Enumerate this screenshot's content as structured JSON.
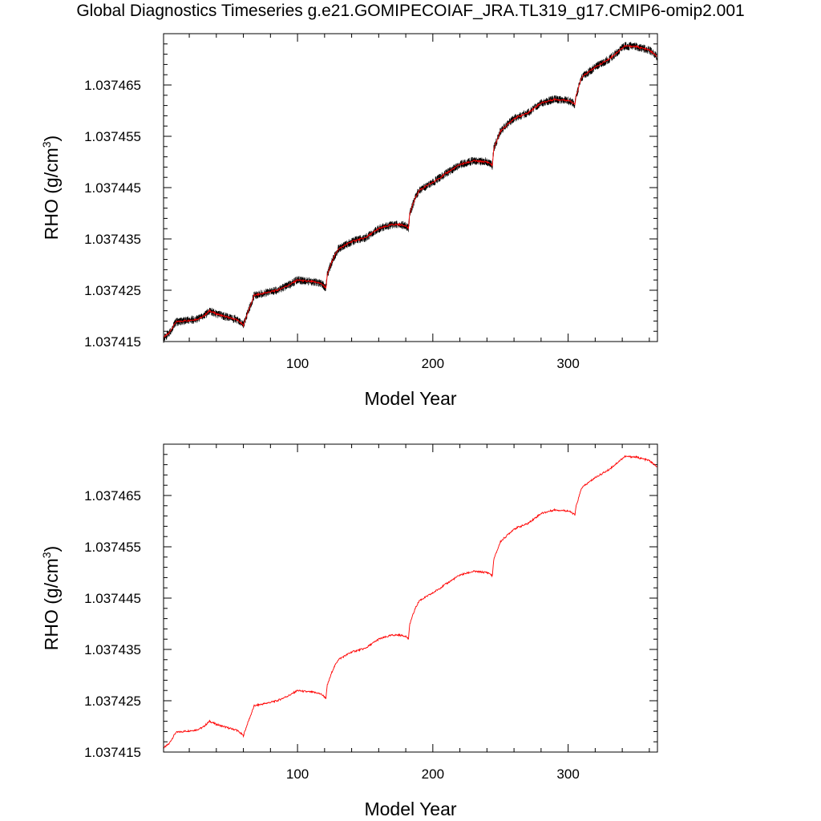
{
  "title": "Global Diagnostics Timeseries g.e21.GOMIPECOIAF_JRA.TL319_g17.CMIP6-omip2.001",
  "chart_data": [
    {
      "type": "line",
      "xlabel": "Model Year",
      "ylabel": "RHO (g/cm³)",
      "ylabel_base": "RHO (g/cm",
      "ylabel_sup": "3",
      "ylabel_end": ")",
      "xlim": [
        1,
        366
      ],
      "ylim": [
        1.037415,
        1.037475
      ],
      "xticks": [
        100,
        200,
        300
      ],
      "yticks": [
        1.037415,
        1.037425,
        1.037435,
        1.037445,
        1.037455,
        1.037465
      ],
      "ytick_labels": [
        "1.037415",
        "1.037425",
        "1.037435",
        "1.037445",
        "1.037455",
        "1.037465"
      ],
      "series": [
        {
          "role": "monthly",
          "color": "#000000",
          "x": [
            1,
            5,
            10,
            15,
            25,
            30,
            35,
            40,
            45,
            50,
            55,
            60,
            63,
            68,
            75,
            85,
            95,
            100,
            105,
            110,
            115,
            118,
            121,
            122,
            126,
            130,
            140,
            150,
            160,
            170,
            175,
            180,
            182,
            183,
            187,
            190,
            200,
            210,
            220,
            230,
            240,
            242,
            244,
            245,
            250,
            260,
            270,
            280,
            290,
            300,
            303,
            305,
            306,
            310,
            320,
            330,
            340,
            342,
            350,
            360,
            366
          ],
          "y": [
            1.0374155,
            1.0374166,
            1.0374188,
            1.037419,
            1.0374193,
            1.0374198,
            1.037421,
            1.0374204,
            1.03742,
            1.0374196,
            1.0374193,
            1.0374182,
            1.0374205,
            1.037424,
            1.0374244,
            1.037425,
            1.0374262,
            1.037427,
            1.0374268,
            1.0374267,
            1.0374265,
            1.0374262,
            1.0374255,
            1.037428,
            1.037431,
            1.037433,
            1.0374345,
            1.0374352,
            1.037437,
            1.0374378,
            1.0374378,
            1.0374376,
            1.037437,
            1.03744,
            1.037443,
            1.0374445,
            1.037446,
            1.0374478,
            1.0374495,
            1.0374502,
            1.03745,
            1.0374498,
            1.0374493,
            1.0374525,
            1.037456,
            1.0374585,
            1.0374595,
            1.0374615,
            1.0374622,
            1.037462,
            1.0374616,
            1.0374612,
            1.037463,
            1.0374665,
            1.0374685,
            1.03747,
            1.0374722,
            1.0374726,
            1.0374725,
            1.0374718,
            1.0374705
          ]
        },
        {
          "role": "annual",
          "color": "#ff0000",
          "x": [
            1,
            5,
            10,
            15,
            25,
            30,
            35,
            40,
            45,
            50,
            55,
            60,
            63,
            68,
            75,
            85,
            95,
            100,
            105,
            110,
            115,
            118,
            121,
            122,
            126,
            130,
            140,
            150,
            160,
            170,
            175,
            180,
            182,
            183,
            187,
            190,
            200,
            210,
            220,
            230,
            240,
            242,
            244,
            245,
            250,
            260,
            270,
            280,
            290,
            300,
            303,
            305,
            306,
            310,
            320,
            330,
            340,
            342,
            350,
            360,
            366
          ],
          "y": [
            1.0374158,
            1.0374166,
            1.0374188,
            1.037419,
            1.0374193,
            1.0374198,
            1.037421,
            1.0374204,
            1.03742,
            1.0374196,
            1.0374193,
            1.0374182,
            1.0374205,
            1.037424,
            1.0374244,
            1.037425,
            1.0374262,
            1.037427,
            1.0374268,
            1.0374267,
            1.0374265,
            1.0374262,
            1.0374255,
            1.037428,
            1.037431,
            1.037433,
            1.0374345,
            1.0374352,
            1.037437,
            1.0374378,
            1.0374378,
            1.0374376,
            1.037437,
            1.03744,
            1.037443,
            1.0374445,
            1.037446,
            1.0374478,
            1.0374495,
            1.0374502,
            1.03745,
            1.0374498,
            1.0374493,
            1.0374525,
            1.037456,
            1.0374585,
            1.0374595,
            1.0374615,
            1.0374622,
            1.037462,
            1.0374616,
            1.0374612,
            1.037463,
            1.0374665,
            1.0374685,
            1.03747,
            1.0374722,
            1.0374726,
            1.0374725,
            1.0374718,
            1.0374705
          ]
        }
      ]
    },
    {
      "type": "line",
      "xlabel": "Model Year",
      "ylabel": "RHO (g/cm³)",
      "ylabel_base": "RHO (g/cm",
      "ylabel_sup": "3",
      "ylabel_end": ")",
      "xlim": [
        1,
        366
      ],
      "ylim": [
        1.037415,
        1.037475
      ],
      "xticks": [
        100,
        200,
        300
      ],
      "yticks": [
        1.037415,
        1.037425,
        1.037435,
        1.037445,
        1.037455,
        1.037465
      ],
      "ytick_labels": [
        "1.037415",
        "1.037425",
        "1.037435",
        "1.037445",
        "1.037455",
        "1.037465"
      ],
      "series": [
        {
          "role": "annual",
          "color": "#ff0000",
          "x": [
            1,
            5,
            10,
            15,
            25,
            30,
            35,
            40,
            45,
            50,
            55,
            60,
            63,
            68,
            75,
            85,
            95,
            100,
            105,
            110,
            115,
            118,
            121,
            122,
            126,
            130,
            140,
            150,
            160,
            170,
            175,
            180,
            182,
            183,
            187,
            190,
            200,
            210,
            220,
            230,
            240,
            242,
            244,
            245,
            250,
            260,
            270,
            280,
            290,
            300,
            303,
            305,
            306,
            310,
            320,
            330,
            340,
            342,
            350,
            360,
            366
          ],
          "y": [
            1.0374158,
            1.0374166,
            1.0374188,
            1.037419,
            1.0374193,
            1.0374198,
            1.037421,
            1.0374204,
            1.03742,
            1.0374196,
            1.0374193,
            1.0374182,
            1.0374205,
            1.037424,
            1.0374244,
            1.037425,
            1.0374262,
            1.037427,
            1.0374268,
            1.0374267,
            1.0374265,
            1.0374262,
            1.0374255,
            1.037428,
            1.037431,
            1.037433,
            1.0374345,
            1.0374352,
            1.037437,
            1.0374378,
            1.0374378,
            1.0374376,
            1.037437,
            1.03744,
            1.037443,
            1.0374445,
            1.037446,
            1.0374478,
            1.0374495,
            1.0374502,
            1.03745,
            1.0374498,
            1.0374493,
            1.0374525,
            1.037456,
            1.0374585,
            1.0374595,
            1.0374615,
            1.0374622,
            1.037462,
            1.0374616,
            1.0374612,
            1.037463,
            1.0374665,
            1.0374685,
            1.03747,
            1.0374722,
            1.0374726,
            1.0374725,
            1.0374718,
            1.0374705
          ]
        }
      ]
    }
  ]
}
